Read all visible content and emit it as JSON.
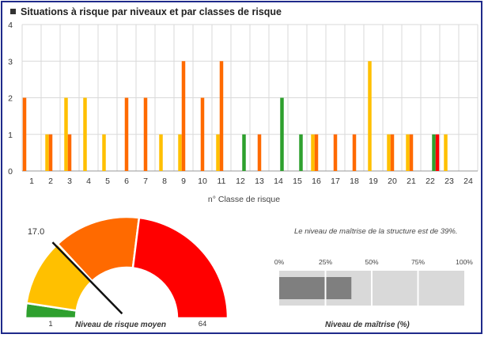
{
  "title": "Situations à risque par niveaux et par classes de risque",
  "colors": {
    "red": "#ff0000",
    "orange": "#ff6a00",
    "yellow": "#ffc000",
    "green": "#2ea02e",
    "frame": "#1f2a8a",
    "bar_fill": "#7f7f7f",
    "bar_track": "#d9d9d9"
  },
  "chart_data": [
    {
      "type": "bar",
      "title": "Situations à risque par niveaux et par classes de risque",
      "xlabel": "n° Classe de risque",
      "ylabel": "",
      "ylim": [
        0,
        4
      ],
      "yticks": [
        "0",
        "1",
        "2",
        "3",
        "4"
      ],
      "categories": [
        "1",
        "2",
        "3",
        "4",
        "5",
        "6",
        "7",
        "8",
        "9",
        "10",
        "11",
        "12",
        "13",
        "14",
        "15",
        "16",
        "17",
        "18",
        "19",
        "20",
        "21",
        "22",
        "23",
        "24"
      ],
      "series": [
        {
          "color": "#ff6a00",
          "values": [
            2,
            0,
            0,
            0,
            0,
            0,
            0,
            0,
            0,
            0,
            0,
            0,
            0,
            0,
            0,
            0,
            0,
            0,
            0,
            0,
            0,
            0,
            0,
            0
          ]
        },
        {
          "color": "#ffc000",
          "values": [
            0,
            1,
            2,
            2,
            1,
            0,
            0,
            1,
            1,
            0,
            1,
            0,
            0,
            0,
            0,
            1,
            0,
            0,
            3,
            1,
            1,
            0,
            1,
            0
          ]
        },
        {
          "color": "#ff6a00",
          "values": [
            0,
            1,
            1,
            0,
            0,
            2,
            2,
            0,
            3,
            2,
            3,
            0,
            1,
            0,
            0,
            1,
            1,
            1,
            0,
            1,
            1,
            0,
            0,
            0
          ]
        },
        {
          "color": "#2ea02e",
          "values": [
            0,
            0,
            0,
            0,
            0,
            0,
            0,
            0,
            0,
            0,
            0,
            1,
            0,
            2,
            1,
            0,
            0,
            0,
            0,
            0,
            0,
            1,
            0,
            0
          ]
        },
        {
          "color": "#ff0000",
          "values": [
            0,
            0,
            0,
            0,
            0,
            0,
            0,
            0,
            0,
            0,
            0,
            0,
            0,
            0,
            0,
            0,
            0,
            0,
            0,
            0,
            0,
            1,
            0,
            0
          ]
        }
      ],
      "grid": true
    },
    {
      "type": "gauge",
      "value_label": "17.0",
      "value": 17.0,
      "min": 1,
      "max": 64,
      "min_label": "1",
      "max_label": "64",
      "caption": "Niveau de risque moyen",
      "bands": [
        {
          "color": "#2ea02e",
          "from": 1,
          "to": 4
        },
        {
          "color": "#ffc000",
          "from": 4,
          "to": 17.5
        },
        {
          "color": "#ff6a00",
          "from": 17.5,
          "to": 35
        },
        {
          "color": "#ff0000",
          "from": 35,
          "to": 64
        }
      ]
    },
    {
      "type": "bar",
      "orientation": "horizontal",
      "caption": "Niveau de maîtrise (%)",
      "note": "Le niveau de maîtrise de la structure est de 39%.",
      "value": 39,
      "xlim": [
        0,
        100
      ],
      "ticks": [
        "0%",
        "25%",
        "50%",
        "75%",
        "100%"
      ]
    }
  ]
}
